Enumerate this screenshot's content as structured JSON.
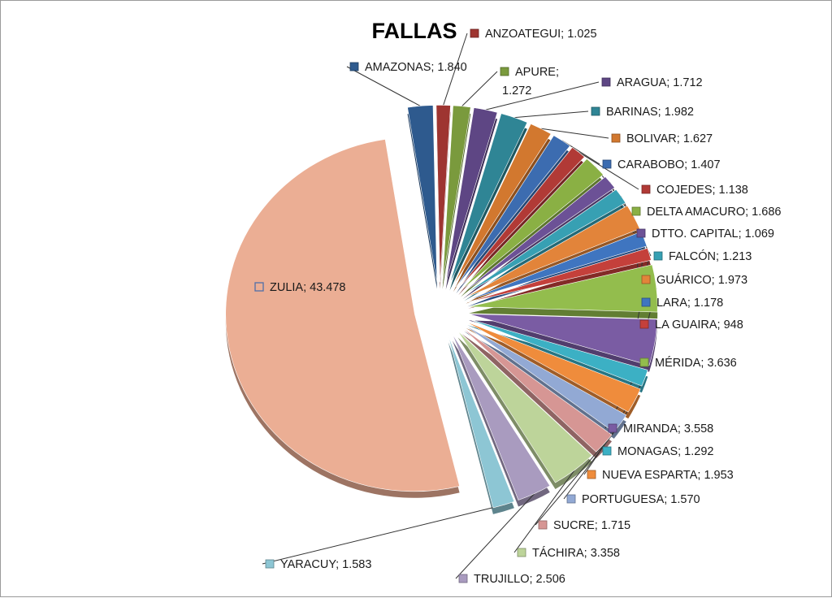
{
  "chart_data": {
    "type": "pie",
    "title": "FALLAS",
    "series": [
      {
        "name": "AMAZONAS",
        "value_label": "1.840",
        "value": 1840,
        "color": "#2e5a8e",
        "dark": "#1d3b5e"
      },
      {
        "name": "ANZOATEGUI",
        "value_label": "1.025",
        "value": 1025,
        "color": "#9e3531",
        "dark": "#6a2220"
      },
      {
        "name": "APURE",
        "value_label": "1.272",
        "value": 1272,
        "color": "#7a9a3d",
        "dark": "#506627"
      },
      {
        "name": "ARAGUA",
        "value_label": "1.712",
        "value": 1712,
        "color": "#5e4684",
        "dark": "#3e2e58"
      },
      {
        "name": "BARINAS",
        "value_label": "1.982",
        "value": 1982,
        "color": "#2f8595",
        "dark": "#1e5862"
      },
      {
        "name": "BOLIVAR",
        "value_label": "1.627",
        "value": 1627,
        "color": "#d2782f",
        "dark": "#8c4f1e"
      },
      {
        "name": "CARABOBO",
        "value_label": "1.407",
        "value": 1407,
        "color": "#3c6cb0",
        "dark": "#274875"
      },
      {
        "name": "COJEDES",
        "value_label": "1.138",
        "value": 1138,
        "color": "#b13a36",
        "dark": "#762624"
      },
      {
        "name": "DELTA AMACURO",
        "value_label": "1.686",
        "value": 1686,
        "color": "#8ab044",
        "dark": "#5c752d"
      },
      {
        "name": "DTTO. CAPITAL",
        "value_label": "1.069",
        "value": 1069,
        "color": "#6c5196",
        "dark": "#483663"
      },
      {
        "name": "FALCÓN",
        "value_label": "1.213",
        "value": 1213,
        "color": "#37a0b3",
        "dark": "#246a77"
      },
      {
        "name": "GUÁRICO",
        "value_label": "1.973",
        "value": 1973,
        "color": "#e2843a",
        "dark": "#975826"
      },
      {
        "name": "LARA",
        "value_label": "1.178",
        "value": 1178,
        "color": "#3f75c0",
        "dark": "#2a4e80"
      },
      {
        "name": "LA GUAIRA",
        "value_label": "948",
        "value": 948,
        "color": "#c4403b",
        "dark": "#832b27"
      },
      {
        "name": "MÉRIDA",
        "value_label": "3.636",
        "value": 3636,
        "color": "#93bd4d",
        "dark": "#627e33"
      },
      {
        "name": "MIRANDA",
        "value_label": "3.558",
        "value": 3558,
        "color": "#7a5ca3",
        "dark": "#513d6d"
      },
      {
        "name": "MONAGAS",
        "value_label": "1.292",
        "value": 1292,
        "color": "#3cb0c4",
        "dark": "#287583"
      },
      {
        "name": "NUEVA ESPARTA",
        "value_label": "1.953",
        "value": 1953,
        "color": "#ef8c3c",
        "dark": "#9f5d28"
      },
      {
        "name": "PORTUGUESA",
        "value_label": "1.570",
        "value": 1570,
        "color": "#92a9d4",
        "dark": "#61718d"
      },
      {
        "name": "SUCRE",
        "value_label": "1.715",
        "value": 1715,
        "color": "#d69694",
        "dark": "#8f6463"
      },
      {
        "name": "TÁCHIRA",
        "value_label": "3.358",
        "value": 3358,
        "color": "#bdd49a",
        "dark": "#7e8d67"
      },
      {
        "name": "TRUJILLO",
        "value_label": "2.506",
        "value": 2506,
        "color": "#a99bbf",
        "dark": "#71677f"
      },
      {
        "name": "YARACUY",
        "value_label": "1.583",
        "value": 1583,
        "color": "#8dc6d4",
        "dark": "#5e848d"
      },
      {
        "name": "ZULIA",
        "value_label": "43.478",
        "value": 43478,
        "color": "#ebae94",
        "dark": "#9d7463"
      }
    ]
  }
}
